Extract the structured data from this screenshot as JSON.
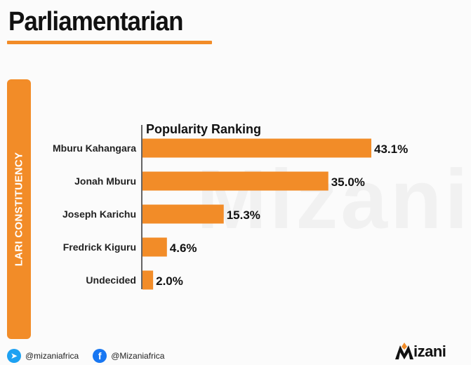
{
  "title": "Parliamentarian",
  "side_label": "LARI CONSTITUENCY",
  "watermark": "Mizani",
  "social": {
    "twitter": "@mizaniafrica",
    "facebook": "@Mizaniafrica"
  },
  "logo_text": "izani",
  "colors": {
    "accent": "#f28c28",
    "text": "#111111",
    "twitter": "#1da1f2",
    "facebook": "#1877f2"
  },
  "icons": {
    "twitter": "twitter-icon",
    "facebook": "facebook-icon",
    "logo": "mizani-logo-icon"
  },
  "chart_data": {
    "type": "bar",
    "orientation": "horizontal",
    "title": "Popularity Ranking",
    "categories": [
      "Mburu Kahangara",
      "Jonah Mburu",
      "Joseph Karichu",
      "Fredrick Kiguru",
      "Undecided"
    ],
    "values": [
      43.1,
      35.0,
      15.3,
      4.6,
      2.0
    ],
    "value_labels": [
      "43.1%",
      "35.0%",
      "15.3%",
      "4.6%",
      "2.0%"
    ],
    "xlim": [
      0,
      43.1
    ],
    "grid": false,
    "legend": "none"
  }
}
